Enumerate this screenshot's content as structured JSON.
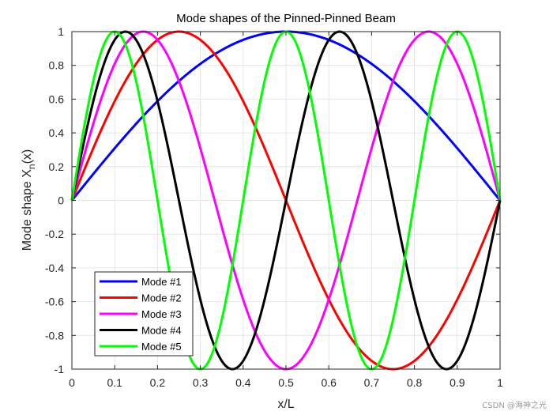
{
  "chart_data": {
    "type": "line",
    "title": "Mode shapes of the Pinned-Pinned Beam",
    "xlabel": "x/L",
    "ylabel_main": "Mode shape X",
    "ylabel_sub": "n",
    "ylabel_tail": "(x)",
    "xlim": [
      0,
      1
    ],
    "ylim": [
      -1,
      1
    ],
    "xticks": [
      "0",
      "0.1",
      "0.2",
      "0.3",
      "0.4",
      "0.5",
      "0.6",
      "0.7",
      "0.8",
      "0.9",
      "1"
    ],
    "xtick_values": [
      0,
      0.1,
      0.2,
      0.3,
      0.4,
      0.5,
      0.6,
      0.7,
      0.8,
      0.9,
      1
    ],
    "yticks": [
      "1",
      "0.8",
      "0.6",
      "0.4",
      "0.2",
      "0",
      "-0.2",
      "-0.4",
      "-0.6",
      "-0.8",
      "-1"
    ],
    "ytick_values": [
      1,
      0.8,
      0.6,
      0.4,
      0.2,
      0,
      -0.2,
      -0.4,
      -0.6,
      -0.8,
      -1
    ],
    "grid": true,
    "legend_position": "bottom-left",
    "series": [
      {
        "name": "Mode #1",
        "mode": 1,
        "color": "#0000ff",
        "formula": "sin(1*pi*x)"
      },
      {
        "name": "Mode #2",
        "mode": 2,
        "color": "#ff0000",
        "formula": "sin(2*pi*x)"
      },
      {
        "name": "Mode #3",
        "mode": 3,
        "color": "#ff00ff",
        "formula": "sin(3*pi*x)"
      },
      {
        "name": "Mode #4",
        "mode": 4,
        "color": "#000000",
        "formula": "sin(4*pi*x)"
      },
      {
        "name": "Mode #5",
        "mode": 5,
        "color": "#00ff00",
        "formula": "sin(5*pi*x)"
      }
    ]
  },
  "watermark": "CSDN @海神之光"
}
